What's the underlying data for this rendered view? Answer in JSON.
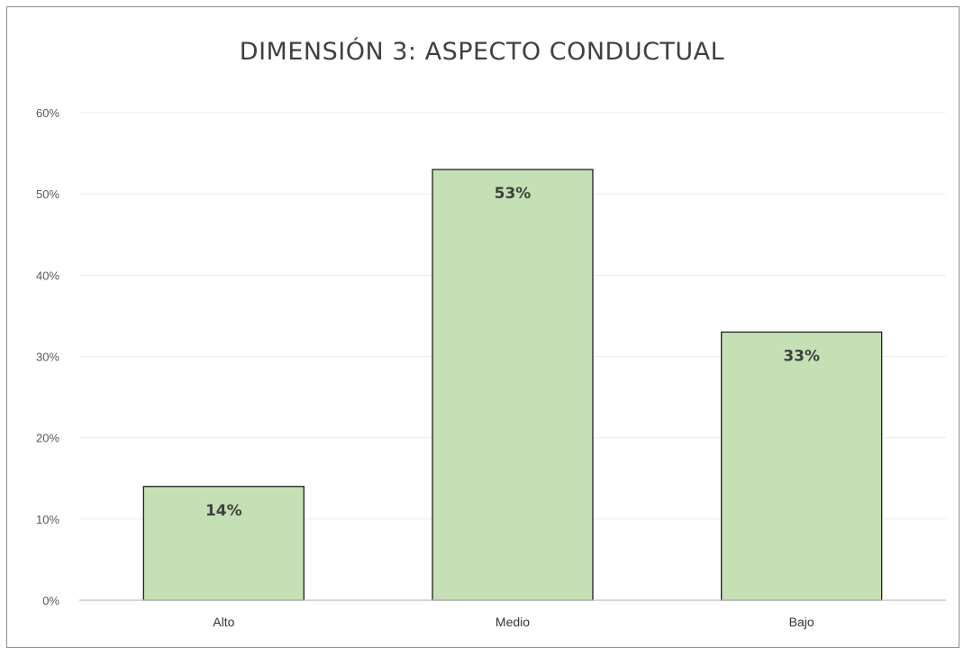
{
  "chart_data": {
    "type": "bar",
    "title": "DIMENSIÓN 3: ASPECTO CONDUCTUAL",
    "categories": [
      "Alto",
      "Medio",
      "Bajo"
    ],
    "values": [
      14,
      53,
      33
    ],
    "data_labels": [
      "14%",
      "53%",
      "33%"
    ],
    "ylim": [
      0,
      60
    ],
    "yticks": [
      0,
      10,
      20,
      30,
      40,
      50,
      60
    ],
    "ytick_labels": [
      "0%",
      "10%",
      "20%",
      "30%",
      "40%",
      "50%",
      "60%"
    ],
    "xlabel": "",
    "ylabel": "",
    "grid": true,
    "legend": "none",
    "bar_color": "#c5e0b4",
    "bar_edge_color": "#1f1f1f",
    "grid_color": "#ececec"
  }
}
